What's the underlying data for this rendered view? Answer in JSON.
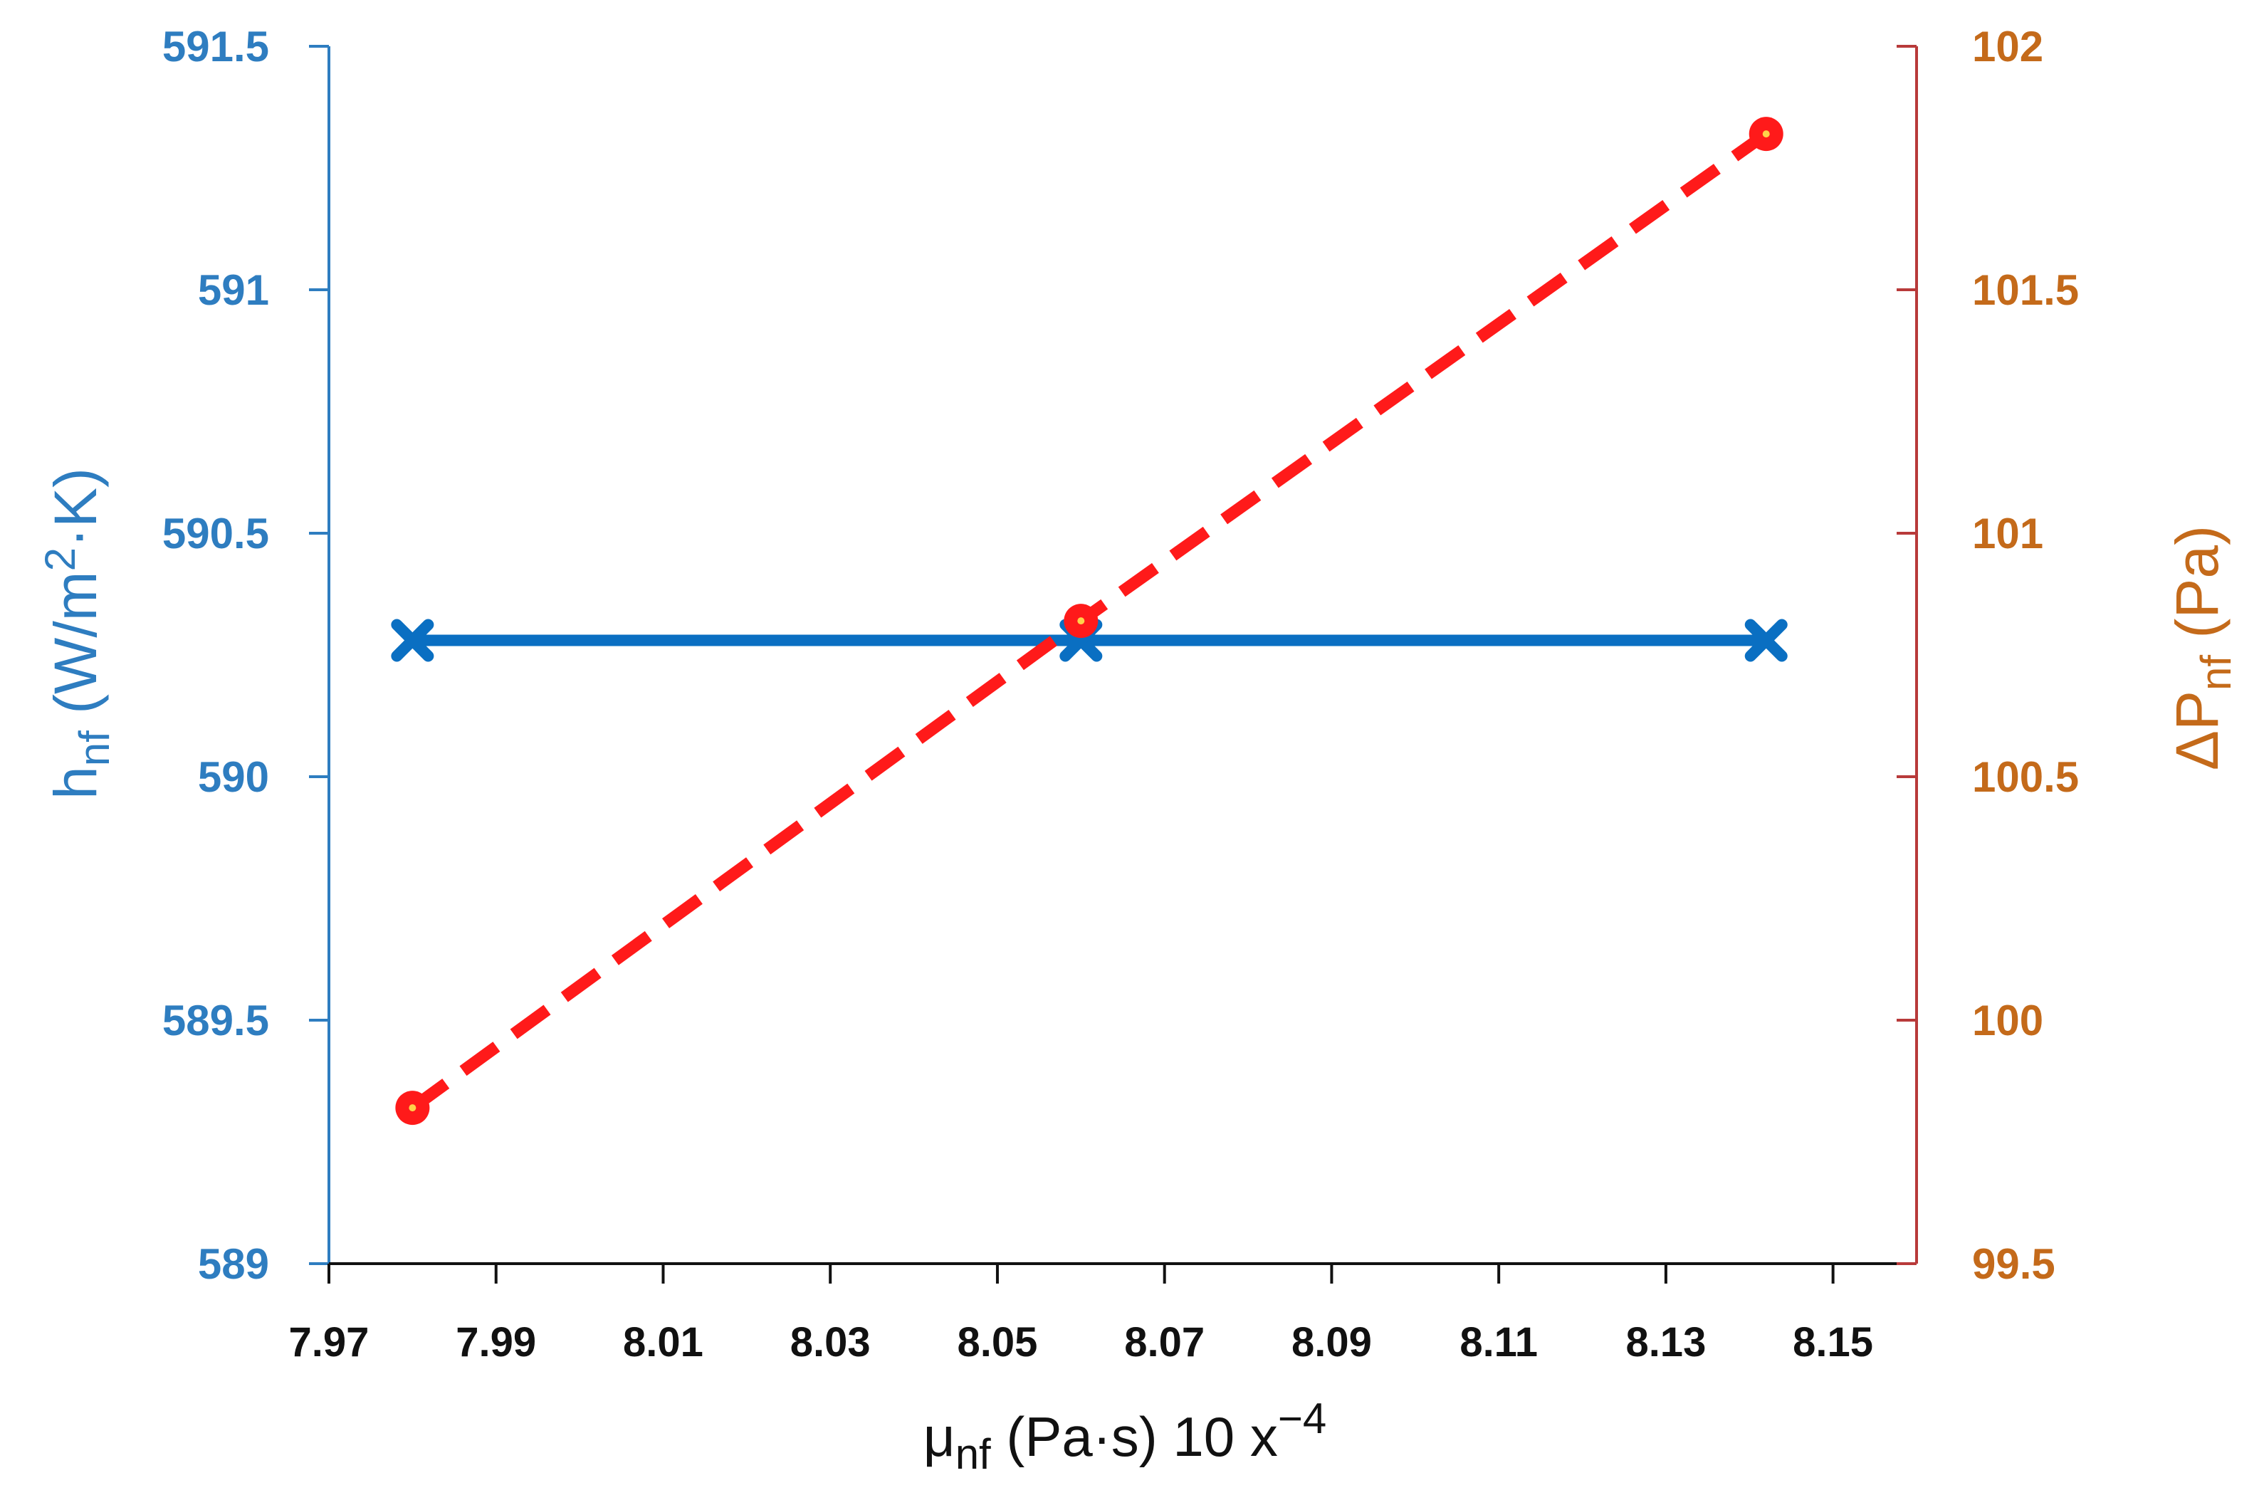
{
  "chart_data": {
    "type": "line",
    "x_label": {
      "main": "μ",
      "sub": "nf",
      "rest": " (Pa·s) 10 x",
      "sup": "−4"
    },
    "y_left_label": {
      "main": "h",
      "sub": "nf",
      "rest": " (W/m",
      "sup": "2",
      "rest2": "·K)"
    },
    "y_right_label": {
      "main": "ΔP",
      "sub": "nf",
      "rest": " (Pa)"
    },
    "xlim": [
      7.97,
      8.16
    ],
    "x_ticks": [
      "7.97",
      "7.99",
      "8.01",
      "8.03",
      "8.05",
      "8.07",
      "8.09",
      "8.11",
      "8.13",
      "8.15"
    ],
    "y_left_lim": [
      589,
      591.5
    ],
    "y_left_ticks": [
      "589",
      "589.5",
      "590",
      "590.5",
      "591",
      "591.5"
    ],
    "y_right_lim": [
      99.5,
      102
    ],
    "y_right_ticks": [
      "99.5",
      "100",
      "100.5",
      "101",
      "101.5",
      "102"
    ],
    "grid": false,
    "series": [
      {
        "axis": "left",
        "color": "#0A6FC2",
        "marker": "x",
        "line": "solid",
        "x": [
          7.98,
          8.06,
          8.142
        ],
        "y": [
          590.28,
          590.28,
          590.28
        ]
      },
      {
        "axis": "right",
        "color": "#FF1A1A",
        "marker": "circle",
        "line": "dashed",
        "x": [
          7.98,
          8.06,
          8.142
        ],
        "y": [
          99.82,
          100.82,
          101.82
        ]
      }
    ],
    "colors": {
      "left_axis": "#2E7DC0",
      "right_axis": "#B83A3A",
      "right_text": "#C46A1A",
      "x_axis": "#111111"
    }
  }
}
